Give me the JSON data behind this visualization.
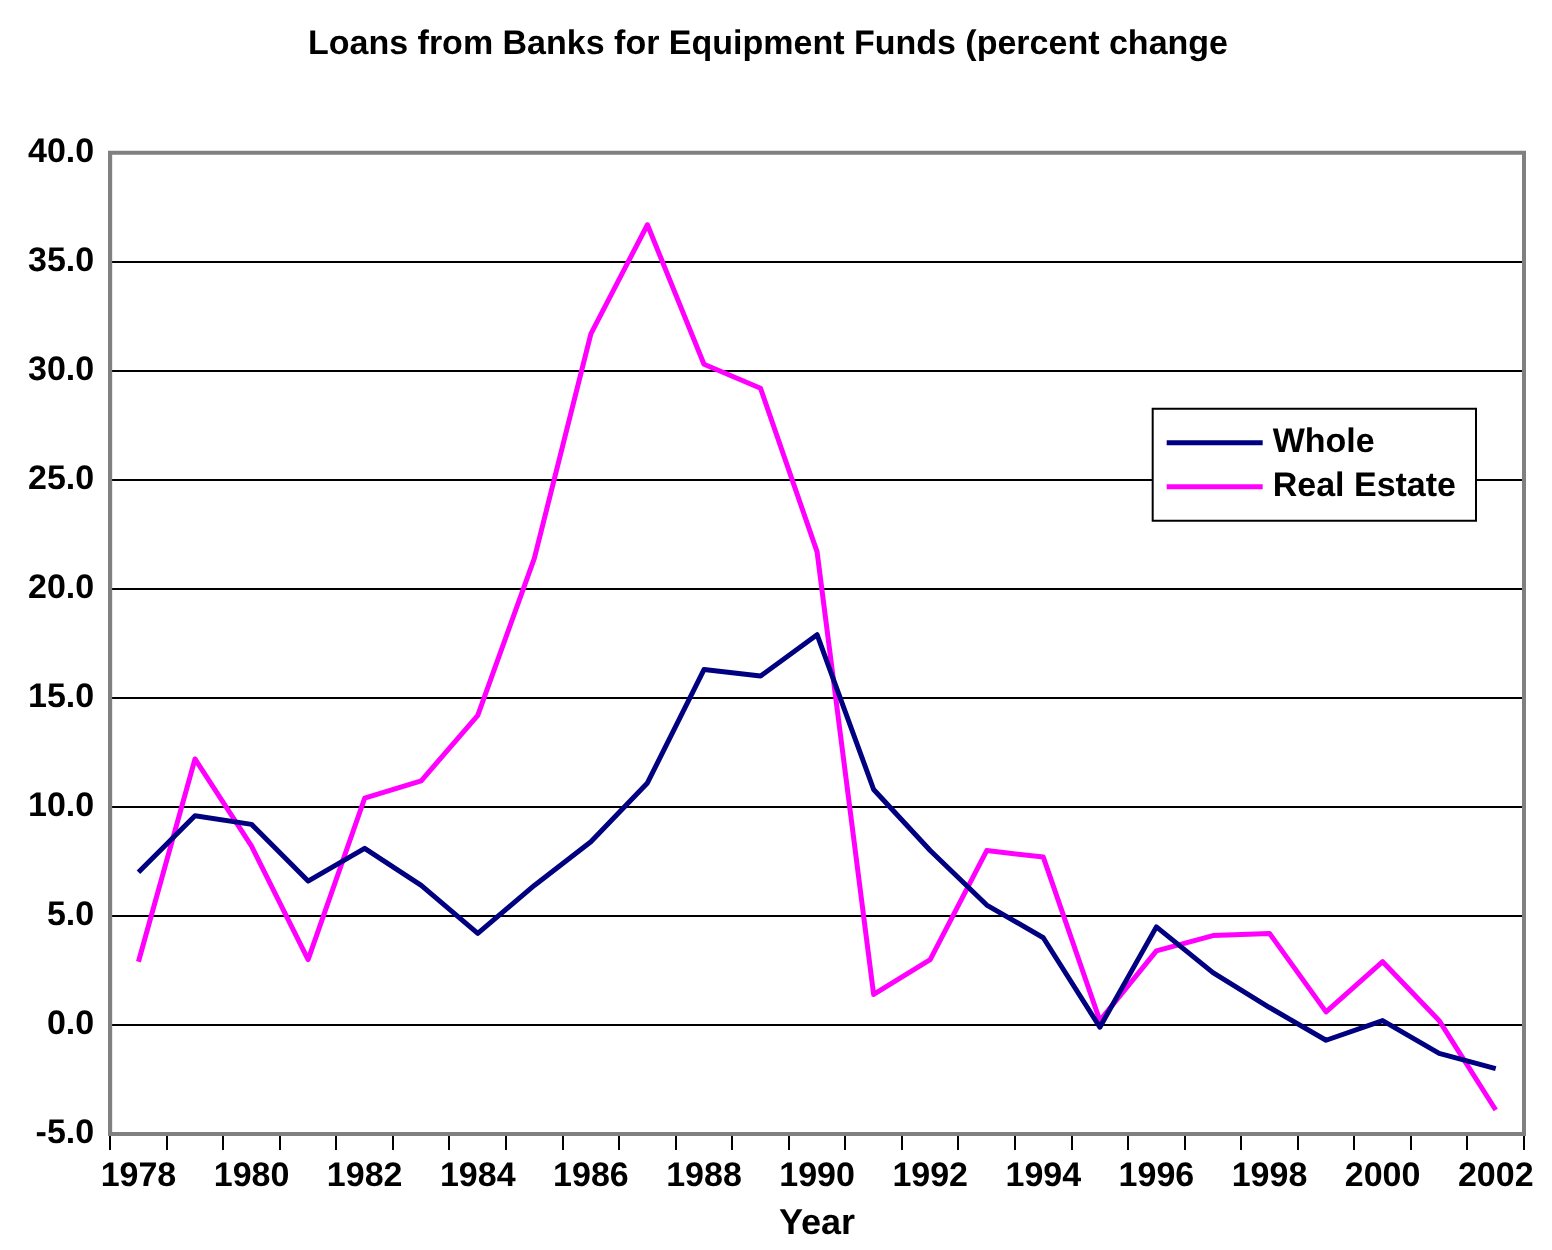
{
  "chart_data": {
    "type": "line",
    "title": "Loans from Banks for Equipment Funds (percent change",
    "xlabel": "Year",
    "categories": [
      "1978",
      null,
      "1980",
      null,
      "1982",
      null,
      "1984",
      null,
      "1986",
      null,
      "1988",
      null,
      "1990",
      null,
      "1992",
      null,
      "1994",
      null,
      "1996",
      null,
      "1998",
      null,
      "2000",
      null,
      "2002"
    ],
    "series": [
      {
        "name": "Whole",
        "color": "#000080",
        "values": [
          7.0,
          9.6,
          9.2,
          6.6,
          8.1,
          6.4,
          4.2,
          6.4,
          8.4,
          11.1,
          16.3,
          16.0,
          17.9,
          10.8,
          8.0,
          5.5,
          4.0,
          -0.1,
          4.5,
          2.4,
          0.8,
          -0.7,
          0.2,
          -1.3,
          -2.0
        ]
      },
      {
        "name": "Real Estate",
        "color": "#ff00ff",
        "values": [
          2.9,
          12.2,
          8.2,
          3.0,
          10.4,
          11.2,
          14.2,
          21.4,
          31.7,
          36.7,
          30.3,
          29.2,
          21.7,
          1.4,
          3.0,
          8.0,
          7.7,
          0.2,
          3.4,
          4.1,
          4.2,
          0.6,
          2.9,
          0.2,
          -3.9
        ]
      }
    ],
    "ylim": [
      -5,
      40
    ],
    "yticks": [
      {
        "value": -5,
        "label": "-5.0"
      },
      {
        "value": 0,
        "label": "0.0"
      },
      {
        "value": 5,
        "label": "5.0"
      },
      {
        "value": 10,
        "label": "10.0"
      },
      {
        "value": 15,
        "label": "15.0"
      },
      {
        "value": 20,
        "label": "20.0"
      },
      {
        "value": 25,
        "label": "25.0"
      },
      {
        "value": 30,
        "label": "30.0"
      },
      {
        "value": 35,
        "label": "35.0"
      },
      {
        "value": 40,
        "label": "40.0"
      }
    ],
    "grid": "y",
    "legend": "right",
    "marker": "none",
    "line_style": "solid"
  }
}
